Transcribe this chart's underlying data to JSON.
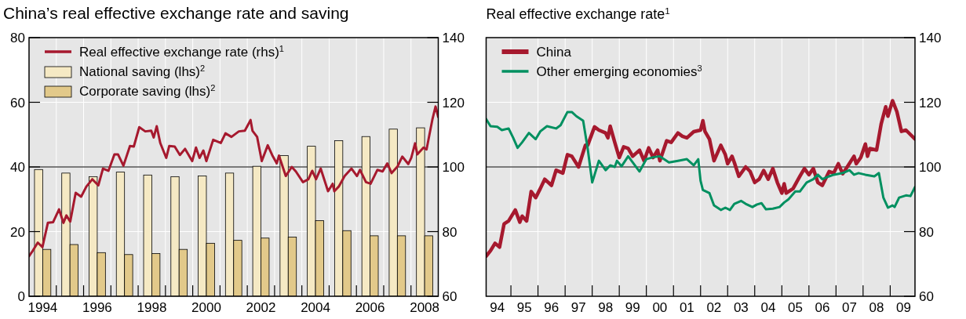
{
  "chart_data": [
    {
      "type": "bar",
      "title": "China’s real effective exchange rate and saving",
      "x": [
        1994,
        1995,
        1996,
        1997,
        1998,
        1999,
        2000,
        2001,
        2002,
        2003,
        2004,
        2005,
        2006,
        2007,
        2008
      ],
      "xlim": [
        1993.5,
        2008.5
      ],
      "xticks": [
        1994,
        {
          "value": 1994.5,
          "label": null
        },
        {
          "value": 1995.5,
          "label": null
        },
        1996,
        {
          "value": 1996.5,
          "label": null
        },
        {
          "value": 1997.5,
          "label": null
        },
        1998,
        {
          "value": 1998.5,
          "label": null
        },
        {
          "value": 1999.5,
          "label": null
        },
        2000,
        {
          "value": 2000.5,
          "label": null
        },
        {
          "value": 2001.5,
          "label": null
        },
        2002,
        {
          "value": 2002.5,
          "label": null
        },
        {
          "value": 2003.5,
          "label": null
        },
        2004,
        {
          "value": 2004.5,
          "label": null
        },
        {
          "value": 2005.5,
          "label": null
        },
        2006,
        {
          "value": 2006.5,
          "label": null
        },
        {
          "value": 2007.5,
          "label": null
        },
        2008
      ],
      "ylim": [
        0,
        80
      ],
      "yticks": [
        0,
        20,
        40,
        60,
        80
      ],
      "y2lim": [
        60,
        140
      ],
      "y2ticks": [
        60,
        80,
        100,
        120,
        140
      ],
      "grid": true,
      "legend": "top left",
      "ref_lines": [
        {
          "axis": "y2",
          "value": 100,
          "color": "#000000"
        }
      ],
      "series": [
        {
          "name": "Real effective exchange rate (rhs)$^{1}$",
          "type": "line",
          "axis": "y2",
          "color": "#a6192e",
          "x": [
            1993.5,
            1993.63,
            1993.82,
            1993.99,
            1994.19,
            1994.38,
            1994.6,
            1994.76,
            1994.87,
            1995.01,
            1995.21,
            1995.41,
            1995.6,
            1995.82,
            1996.04,
            1996.21,
            1996.41,
            1996.63,
            1996.76,
            1996.96,
            1997.2,
            1997.34,
            1997.54,
            1997.76,
            1997.98,
            1998.07,
            1998.18,
            1998.31,
            1998.53,
            1998.64,
            1998.84,
            1999.03,
            1999.22,
            1999.48,
            1999.62,
            1999.75,
            1999.89,
            2000,
            2000.25,
            2000.53,
            2000.7,
            2000.92,
            2001.19,
            2001.41,
            2001.62,
            2001.69,
            2001.86,
            2002.03,
            2002.25,
            2002.41,
            2002.58,
            2002.66,
            2002.91,
            2003.13,
            2003.28,
            2003.54,
            2003.74,
            2003.88,
            2004.02,
            2004.19,
            2004.46,
            2004.63,
            2004.69,
            2004.85,
            2005.07,
            2005.32,
            2005.52,
            2005.63,
            2005.85,
            2006.02,
            2006.27,
            2006.46,
            2006.63,
            2006.79,
            2007.01,
            2007.18,
            2007.4,
            2007.51,
            2007.65,
            2007.73,
            2007.96,
            2008.07,
            2008.29,
            2008.4,
            2008.5
          ],
          "values": [
            72.4,
            74,
            76.6,
            75.2,
            82.7,
            82.9,
            86.9,
            82.7,
            85,
            83.1,
            92,
            90.8,
            93.9,
            96.2,
            94.3,
            99.5,
            98.8,
            103.9,
            103.9,
            100.4,
            106.5,
            106.3,
            112.3,
            111,
            111.2,
            109.1,
            112.6,
            107.4,
            102.8,
            106.5,
            106.3,
            103.7,
            105.6,
            101.8,
            106,
            102.8,
            105.1,
            101.8,
            108.4,
            107.4,
            110.4,
            109.3,
            111,
            111.2,
            114.5,
            111.2,
            109.3,
            101.8,
            106.7,
            103.7,
            101.1,
            103.5,
            97.2,
            100,
            98.6,
            95.3,
            96.2,
            98.8,
            96.2,
            99.5,
            92.5,
            94.8,
            92.5,
            93.9,
            97.2,
            99.5,
            97.2,
            99.1,
            95.3,
            94.8,
            99.1,
            98.6,
            101.1,
            98.1,
            100.2,
            103.2,
            100.9,
            102.8,
            107.3,
            103.9,
            106,
            105.4,
            114.9,
            118.7,
            115.4
          ]
        },
        {
          "name": "National saving (lhs)$^{2}$",
          "color": "#f5e9c4",
          "values": [
            39.2,
            38.1,
            37,
            38.4,
            37.5,
            37,
            37.2,
            38.1,
            40.2,
            43.5,
            46.4,
            48.1,
            49.4,
            51.7,
            52.1
          ]
        },
        {
          "name": "Corporate saving (lhs)$^{2}$",
          "color": "#e2c98a",
          "values": [
            14.5,
            16,
            13.5,
            12.9,
            13.2,
            14.5,
            16.4,
            17.3,
            18,
            18.3,
            23.4,
            20.3,
            18.7,
            18.7,
            18.7
          ]
        }
      ]
    },
    {
      "type": "line",
      "title": "Real effective exchange rate$^{1}$",
      "xlim": [
        "1994-02",
        "2009-12"
      ],
      "xticks": [
        {
          "value": "1994-07",
          "label": "94"
        },
        {
          "value": "1995",
          "label": null
        },
        {
          "value": "1995-07",
          "label": "95"
        },
        {
          "value": "1996",
          "label": null
        },
        {
          "value": "1996-07",
          "label": "96"
        },
        {
          "value": "1997",
          "label": null
        },
        {
          "value": "1997-07",
          "label": "97"
        },
        {
          "value": "1998",
          "label": null
        },
        {
          "value": "1998-07",
          "label": "98"
        },
        {
          "value": "1999",
          "label": null
        },
        {
          "value": "1999-07",
          "label": "99"
        },
        {
          "value": "2000",
          "label": null
        },
        {
          "value": "2000-07",
          "label": "00"
        },
        {
          "value": "2001",
          "label": null
        },
        {
          "value": "2001-07",
          "label": "01"
        },
        {
          "value": "2002",
          "label": null
        },
        {
          "value": "2002-07",
          "label": "02"
        },
        {
          "value": "2003",
          "label": null
        },
        {
          "value": "2003-07",
          "label": "03"
        },
        {
          "value": "2004",
          "label": null
        },
        {
          "value": "2004-07",
          "label": "04"
        },
        {
          "value": "2005",
          "label": null
        },
        {
          "value": "2005-07",
          "label": "05"
        },
        {
          "value": "2006",
          "label": null
        },
        {
          "value": "2006-07",
          "label": "06"
        },
        {
          "value": "2007",
          "label": null
        },
        {
          "value": "2007-07",
          "label": "07"
        },
        {
          "value": "2008",
          "label": null
        },
        {
          "value": "2008-07",
          "label": "08"
        },
        {
          "value": "2009",
          "label": null
        },
        {
          "value": "2009-07",
          "label": "09"
        }
      ],
      "y2lim": [
        60,
        140
      ],
      "y2ticks": [
        60,
        80,
        100,
        120,
        140
      ],
      "grid": true,
      "legend": "top left",
      "ref_lines": [
        {
          "axis": "y2",
          "value": 100,
          "color": "#000000"
        }
      ],
      "series": [
        {
          "name": "China",
          "axis": "y2",
          "color": "#a6192e",
          "x": [
            "1994-02",
            "1994-04",
            "1994-06",
            "1994-08",
            "1994-10",
            "1994-12",
            "1995-03",
            "1995-05",
            "1995-06",
            "1995-08",
            "1995-10",
            "1995-12",
            "1996-02",
            "1996-04",
            "1996-07",
            "1996-09",
            "1996-12",
            "1997-02",
            "1997-04",
            "1997-07",
            "1997-10",
            "1997-11",
            "1998-02",
            "1998-04",
            "1998-07",
            "1998-08",
            "1998-09",
            "1998-11",
            "1999-01",
            "1999-03",
            "1999-05",
            "1999-07",
            "1999-10",
            "1999-12",
            "2000-02",
            "2000-04",
            "2000-06",
            "2000-07",
            "2000-10",
            "2000-12",
            "2001-03",
            "2001-05",
            "2001-07",
            "2001-10",
            "2002-01",
            "2002-02",
            "2002-03",
            "2002-05",
            "2002-07",
            "2002-10",
            "2002-12",
            "2003-01",
            "2003-03",
            "2003-04",
            "2003-06",
            "2003-09",
            "2003-11",
            "2004-01",
            "2004-03",
            "2004-05",
            "2004-07",
            "2004-09",
            "2004-11",
            "2005-01",
            "2005-02",
            "2005-03",
            "2005-06",
            "2005-09",
            "2005-11",
            "2006-01",
            "2006-03",
            "2006-05",
            "2006-07",
            "2006-10",
            "2006-12",
            "2007-02",
            "2007-04",
            "2007-06",
            "2007-09",
            "2007-10",
            "2007-12",
            "2008-02",
            "2008-03",
            "2008-04",
            "2008-07",
            "2008-09",
            "2008-11",
            "2008-12",
            "2009-02",
            "2009-04",
            "2009-06",
            "2009-08",
            "2009-12"
          ],
          "values": [
            72.4,
            74.1,
            76.4,
            75.2,
            82.4,
            83.3,
            86.7,
            82.9,
            84.8,
            83.3,
            92.4,
            90.5,
            93.3,
            96.2,
            94.3,
            99,
            98.1,
            103.8,
            103.3,
            100,
            106.7,
            106.7,
            112.4,
            111.4,
            110.5,
            109,
            112.6,
            107.6,
            102.9,
            106.2,
            105.7,
            103.3,
            105.2,
            101.9,
            105.9,
            102.9,
            105.2,
            101.9,
            108.1,
            107.6,
            110.5,
            109.5,
            109,
            110.9,
            111.4,
            114.3,
            111,
            108.6,
            101.9,
            106.7,
            103.8,
            101,
            103.3,
            101.4,
            97.1,
            100,
            98.6,
            95.2,
            96.2,
            98.9,
            96.2,
            99.5,
            95.2,
            91.9,
            94.8,
            91.9,
            93.3,
            97.1,
            99.5,
            97.6,
            99.5,
            95.2,
            94.3,
            98.6,
            98.1,
            101,
            97.9,
            100,
            103.3,
            101,
            102.9,
            107.1,
            103.3,
            105.7,
            105.2,
            113.3,
            118.6,
            115.7,
            120.5,
            117.1,
            111,
            111.4,
            108.6
          ]
        },
        {
          "name": "Other emerging economies$^{3}$",
          "axis": "y2",
          "color": "#009060",
          "x": [
            "1994-02",
            "1994-04",
            "1994-07",
            "1994-09",
            "1994-12",
            "1995-02",
            "1995-04",
            "1995-06",
            "1995-09",
            "1995-12",
            "1996-02",
            "1996-05",
            "1996-09",
            "1996-11",
            "1997-02",
            "1997-04",
            "1997-06",
            "1997-09",
            "1997-11",
            "1998-01",
            "1998-04",
            "1998-07",
            "1998-09",
            "1998-11",
            "1998-12",
            "1999-02",
            "1999-05",
            "1999-10",
            "2000-01",
            "2000-04",
            "2000-07",
            "2000-11",
            "2001-03",
            "2001-07",
            "2001-10",
            "2001-12",
            "2002-01",
            "2002-02",
            "2002-05",
            "2002-07",
            "2002-10",
            "2002-12",
            "2003-02",
            "2003-04",
            "2003-07",
            "2003-09",
            "2003-12",
            "2004-02",
            "2004-04",
            "2004-06",
            "2004-09",
            "2004-12",
            "2005-02",
            "2005-04",
            "2005-07",
            "2005-09",
            "2005-12",
            "2006-03",
            "2006-05",
            "2006-07",
            "2006-10",
            "2006-12",
            "2007-04",
            "2007-07",
            "2007-09",
            "2007-11",
            "2008-02",
            "2008-06",
            "2008-08",
            "2008-10",
            "2008-12",
            "2009-02",
            "2009-03",
            "2009-05",
            "2009-08",
            "2009-10",
            "2009-12"
          ],
          "values": [
            114.8,
            112.6,
            112.4,
            111.4,
            111.9,
            109,
            105.9,
            107.6,
            110.5,
            108.6,
            111,
            112.6,
            111.9,
            112.9,
            117,
            117,
            115.7,
            114.3,
            105.7,
            95.2,
            101.9,
            99,
            100.5,
            100,
            101.9,
            100.2,
            103.3,
            98.6,
            102.4,
            103,
            103.3,
            101.4,
            101.9,
            102.4,
            100.5,
            102.4,
            95.7,
            92.9,
            91.9,
            88.1,
            86.7,
            87.4,
            86.7,
            88.6,
            89.5,
            88.6,
            87.6,
            88.4,
            88.8,
            86.9,
            87.1,
            87.6,
            89,
            90,
            92.4,
            92.4,
            95.2,
            96.2,
            97.6,
            96.2,
            97.1,
            97.6,
            98.1,
            99,
            97.6,
            98.1,
            97.6,
            97.1,
            98.1,
            90.5,
            87.4,
            88.1,
            87.6,
            90.5,
            91.2,
            91,
            93.8
          ]
        }
      ]
    }
  ]
}
